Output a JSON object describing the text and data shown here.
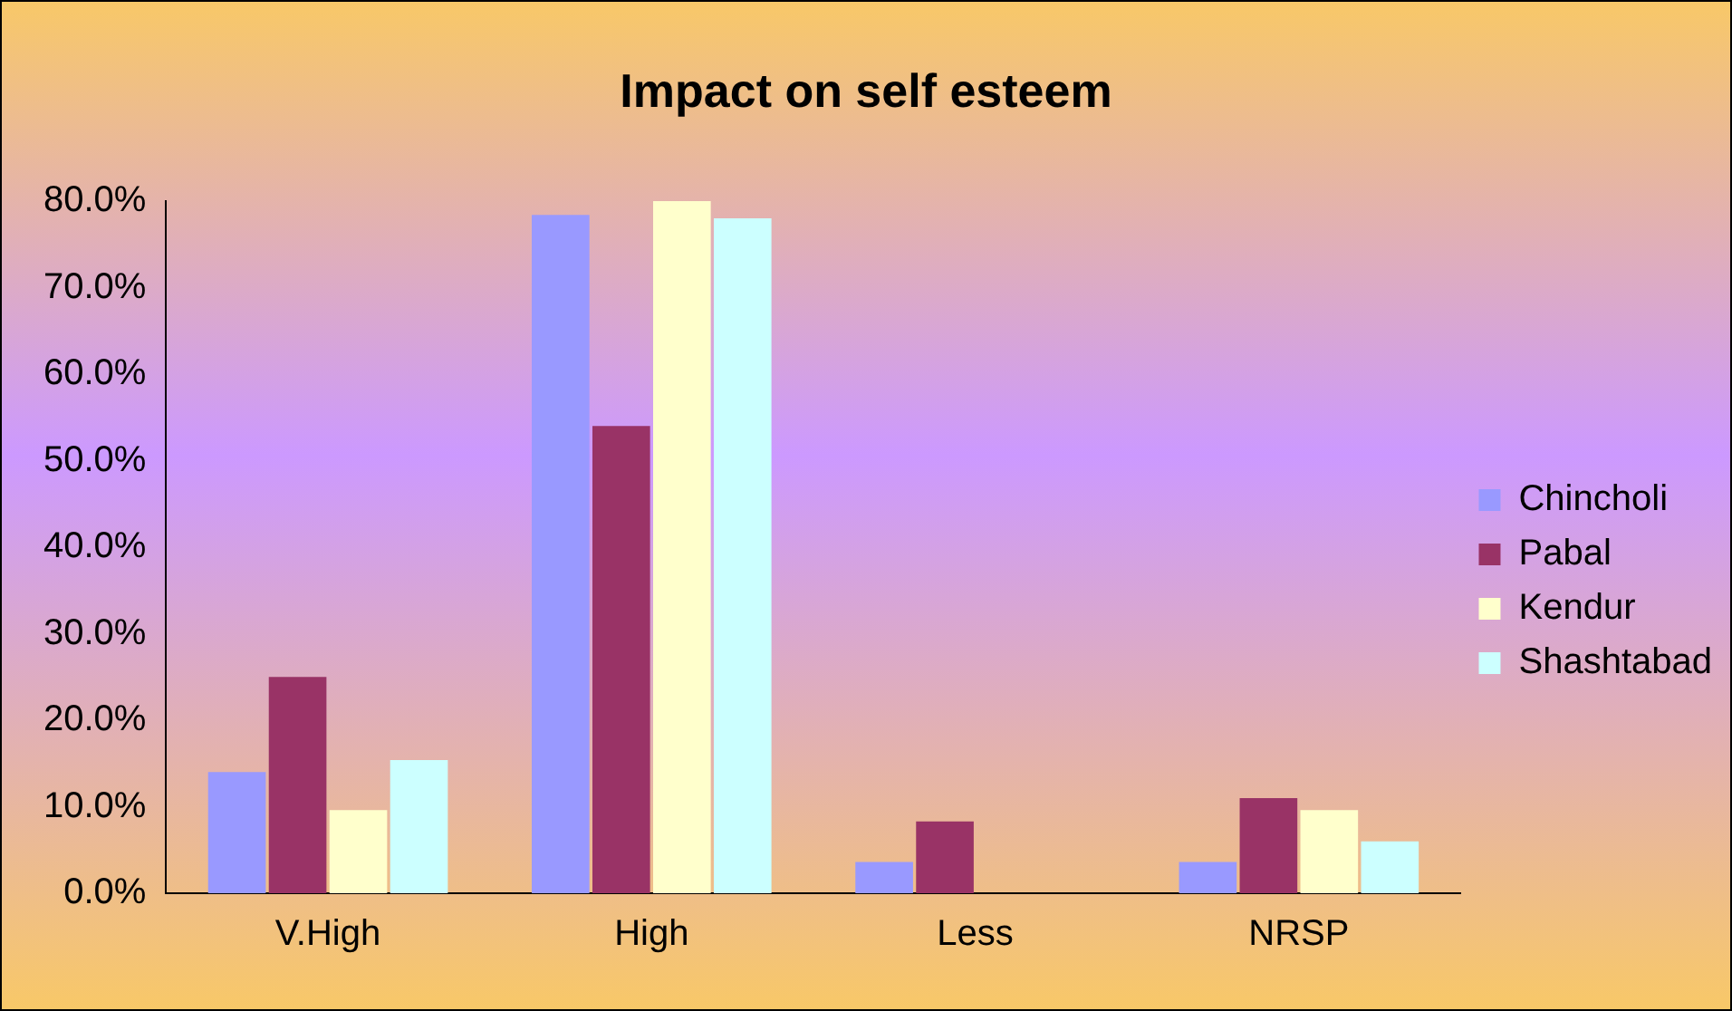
{
  "chart_data": {
    "type": "bar",
    "title": "Impact on self esteem",
    "categories": [
      "V.High",
      "High",
      "Less",
      "NRSP"
    ],
    "series": [
      {
        "name": "Chincholi",
        "color": "#9999ff",
        "values": [
          14,
          78.4,
          3.6,
          3.6
        ]
      },
      {
        "name": "Pabal",
        "color": "#993366",
        "values": [
          25,
          54,
          8.3,
          11
        ]
      },
      {
        "name": "Kendur",
        "color": "#ffffcc",
        "values": [
          9.6,
          80,
          0,
          9.6
        ]
      },
      {
        "name": "Shashtabad",
        "color": "#ccffff",
        "values": [
          15.4,
          78,
          0,
          6
        ]
      }
    ],
    "ylim": [
      0,
      80
    ],
    "yticks": [
      {
        "value": 0,
        "label": "0.0%"
      },
      {
        "value": 10,
        "label": "10.0%"
      },
      {
        "value": 20,
        "label": "20.0%"
      },
      {
        "value": 30,
        "label": "30.0%"
      },
      {
        "value": 40,
        "label": "40.0%"
      },
      {
        "value": 50,
        "label": "50.0%"
      },
      {
        "value": 60,
        "label": "60.0%"
      },
      {
        "value": 70,
        "label": "70.0%"
      },
      {
        "value": 80,
        "label": "80.0%"
      }
    ],
    "grid": false,
    "legend": "right"
  }
}
